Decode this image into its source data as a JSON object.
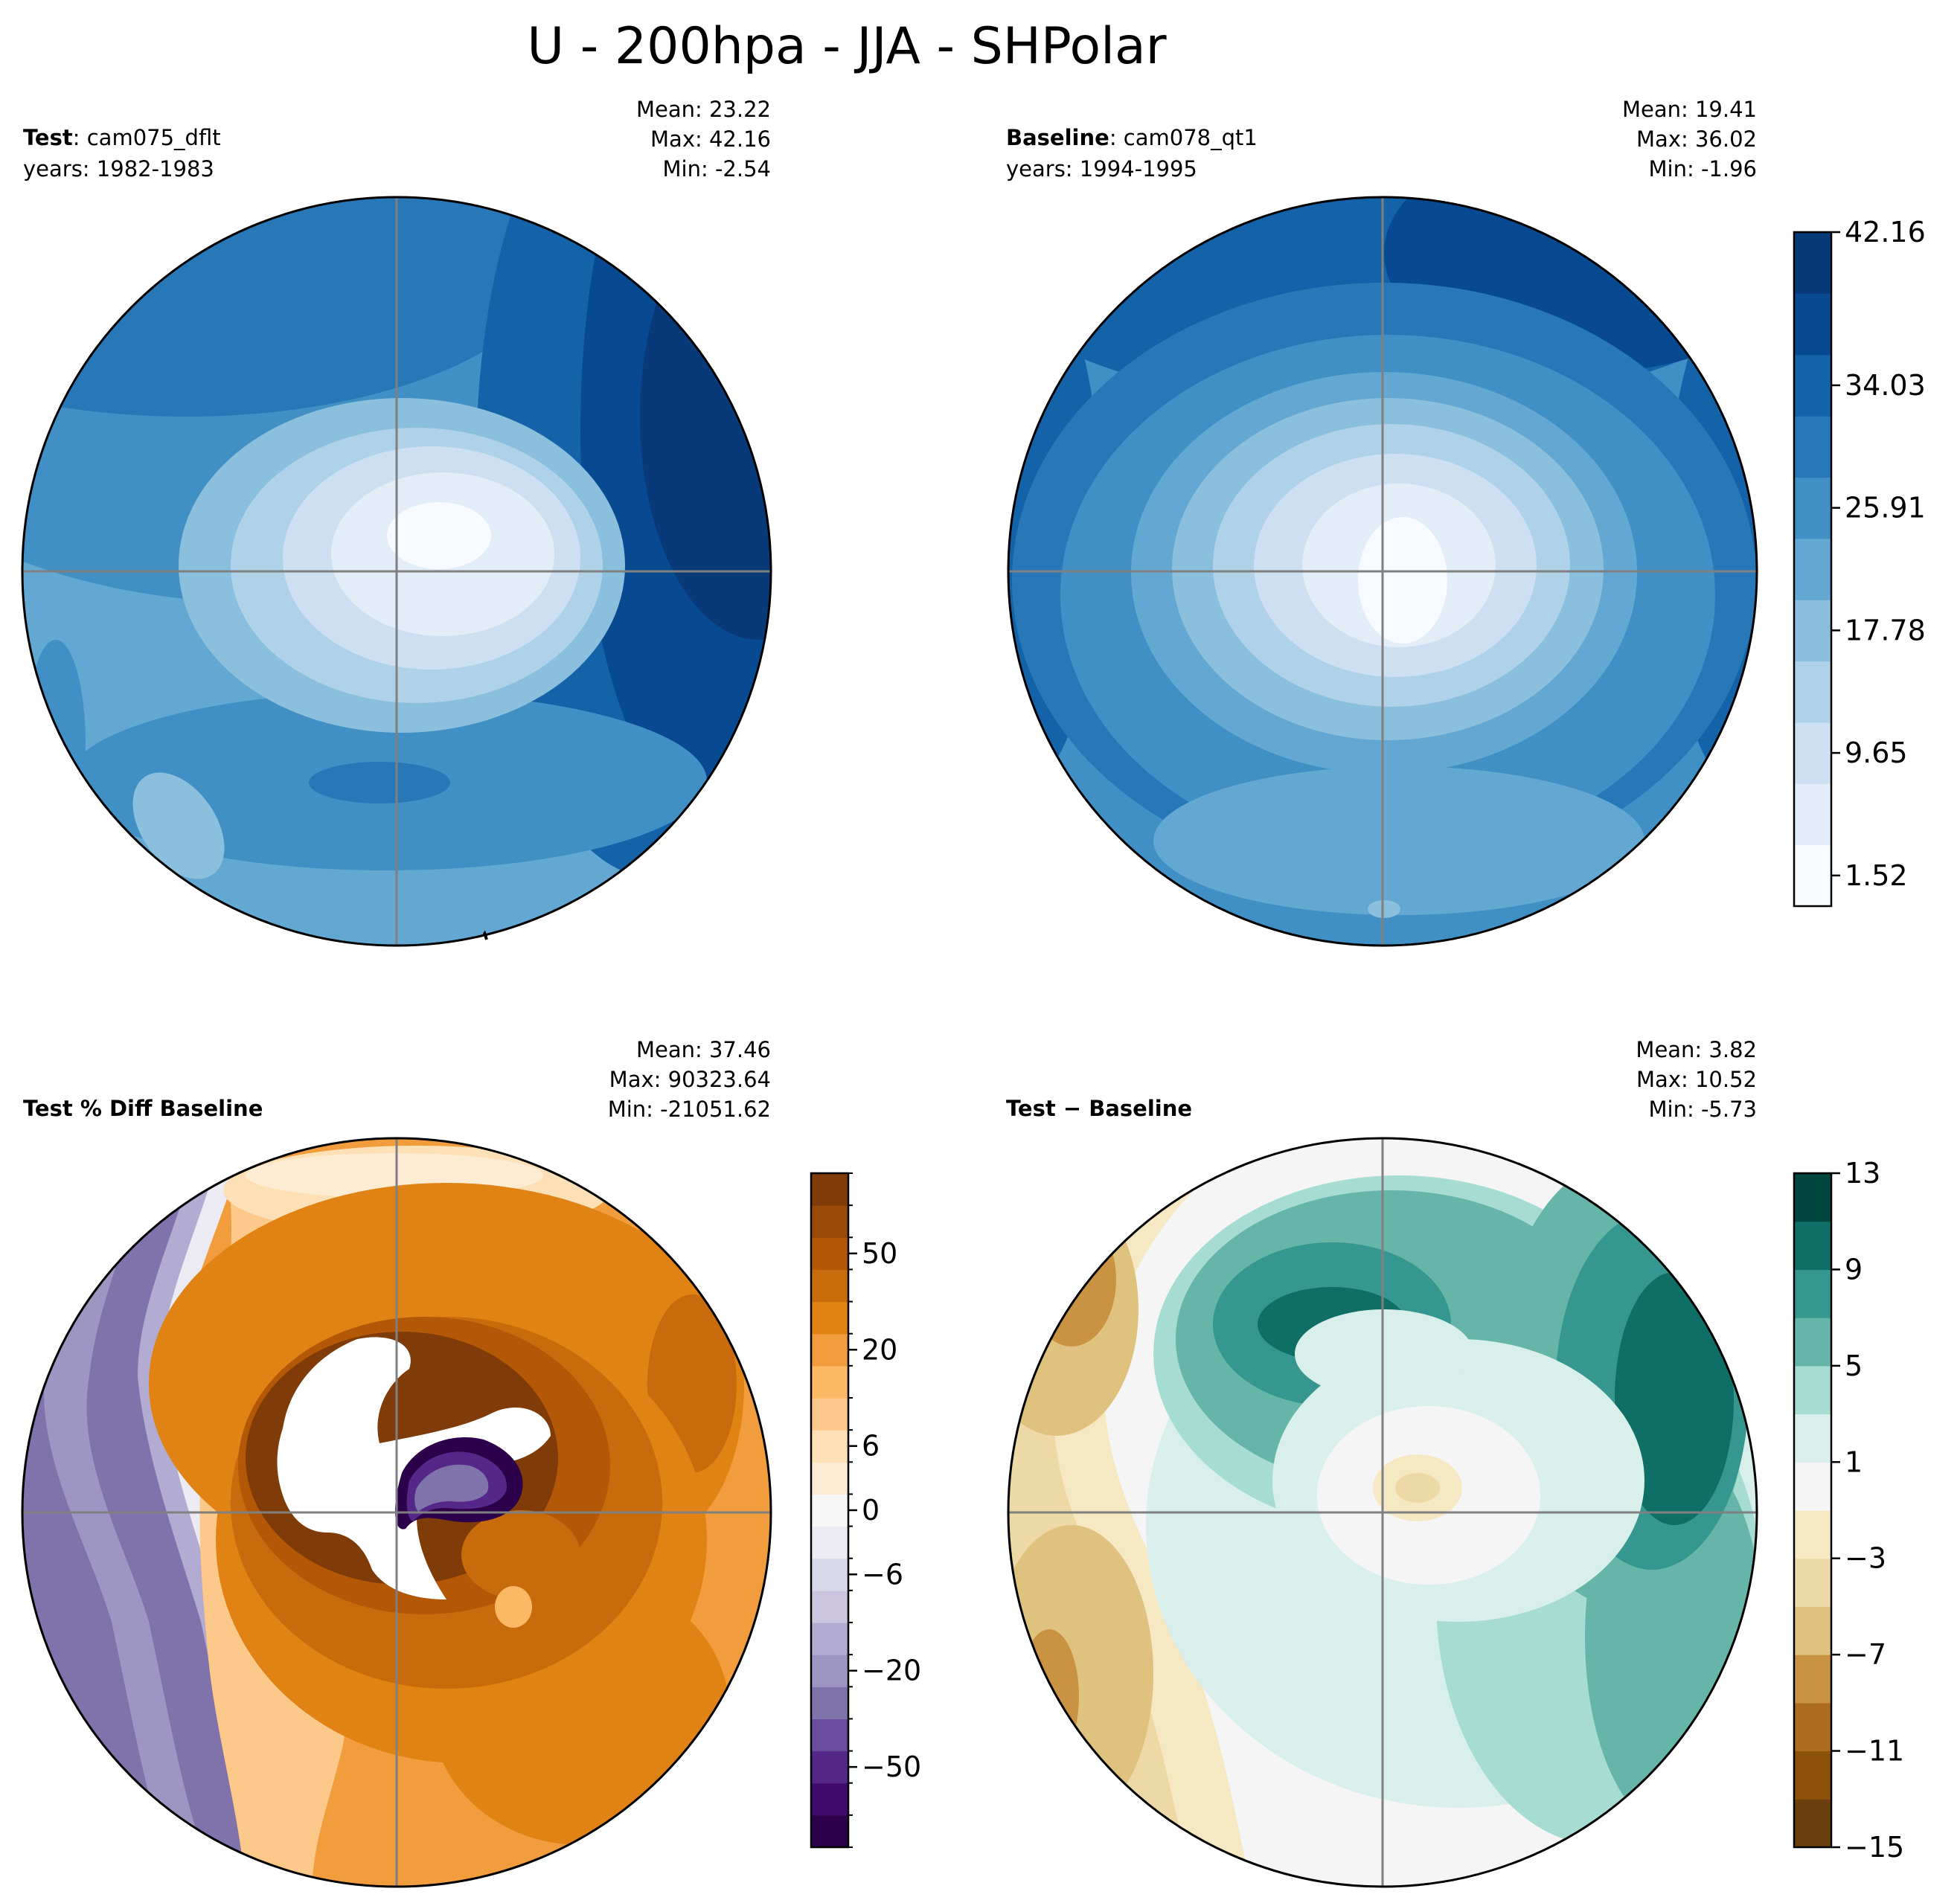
{
  "figure": {
    "title": "U - 200hpa - JJA - SHPolar"
  },
  "panels": [
    {
      "id": "test",
      "name_bold": "Test",
      "name_rest": ": cam075_dflt",
      "years": "years: 1982-1983",
      "stats": {
        "mean": "Mean: 23.22",
        "max": "Max: 42.16",
        "min": "Min: -2.54"
      },
      "palette": "Blues"
    },
    {
      "id": "baseline",
      "name_bold": "Baseline",
      "name_rest": ": cam078_qt1",
      "years": "years: 1994-1995",
      "stats": {
        "mean": "Mean: 19.41",
        "max": "Max: 36.02",
        "min": "Min: -1.96"
      },
      "palette": "Blues"
    },
    {
      "id": "pctdiff",
      "name_bold": "Test % Diff Baseline",
      "stats": {
        "mean": "Mean: 37.46",
        "max": "Max: 90323.64",
        "min": "Min: -21051.62"
      },
      "palette": "PuOr"
    },
    {
      "id": "diff",
      "name_bold": "Test − Baseline",
      "stats": {
        "mean": "Mean:  3.82",
        "max": "Max: 10.52",
        "min": "Min: -5.73"
      },
      "palette": "BrBG"
    }
  ],
  "colorbars": {
    "shared_top": {
      "ticks": [
        "1.52",
        "9.65",
        "17.78",
        "25.91",
        "34.03",
        "42.16"
      ],
      "colors": [
        "#f7fbff",
        "#e2edf8",
        "#cde0f1",
        "#b0d2e8",
        "#8abfdd",
        "#62a8d3",
        "#4090c5",
        "#2878b8",
        "#1462a7",
        "#084a91",
        "#083a7a"
      ]
    },
    "pctdiff": {
      "ticks": [
        "−50",
        "−20",
        "−6",
        "0",
        "6",
        "20",
        "50"
      ],
      "colors": [
        "#2d004b",
        "#3f0b6e",
        "#542788",
        "#6a4c9c",
        "#8073ac",
        "#9e96c2",
        "#b2abd2",
        "#cbc5e0",
        "#d8daeb",
        "#eceaf2",
        "#f7f7f7",
        "#fdebd4",
        "#fee0b6",
        "#fdc98a",
        "#fdb863",
        "#f19c3d",
        "#e08214",
        "#c86b0c",
        "#b35806",
        "#9a4a07",
        "#7f3b08"
      ]
    },
    "diff": {
      "ticks": [
        "−15",
        "−11",
        "−7",
        "−3",
        "1",
        "5",
        "9",
        "13"
      ],
      "colors": [
        "#6b3f0e",
        "#8c510a",
        "#ad6c1f",
        "#c99343",
        "#dfc27d",
        "#edd9a6",
        "#f6e8c3",
        "#f5f5f5",
        "#d8efeb",
        "#a6dcd2",
        "#66b5a9",
        "#35978f",
        "#0f6f66",
        "#01463c"
      ]
    }
  }
}
